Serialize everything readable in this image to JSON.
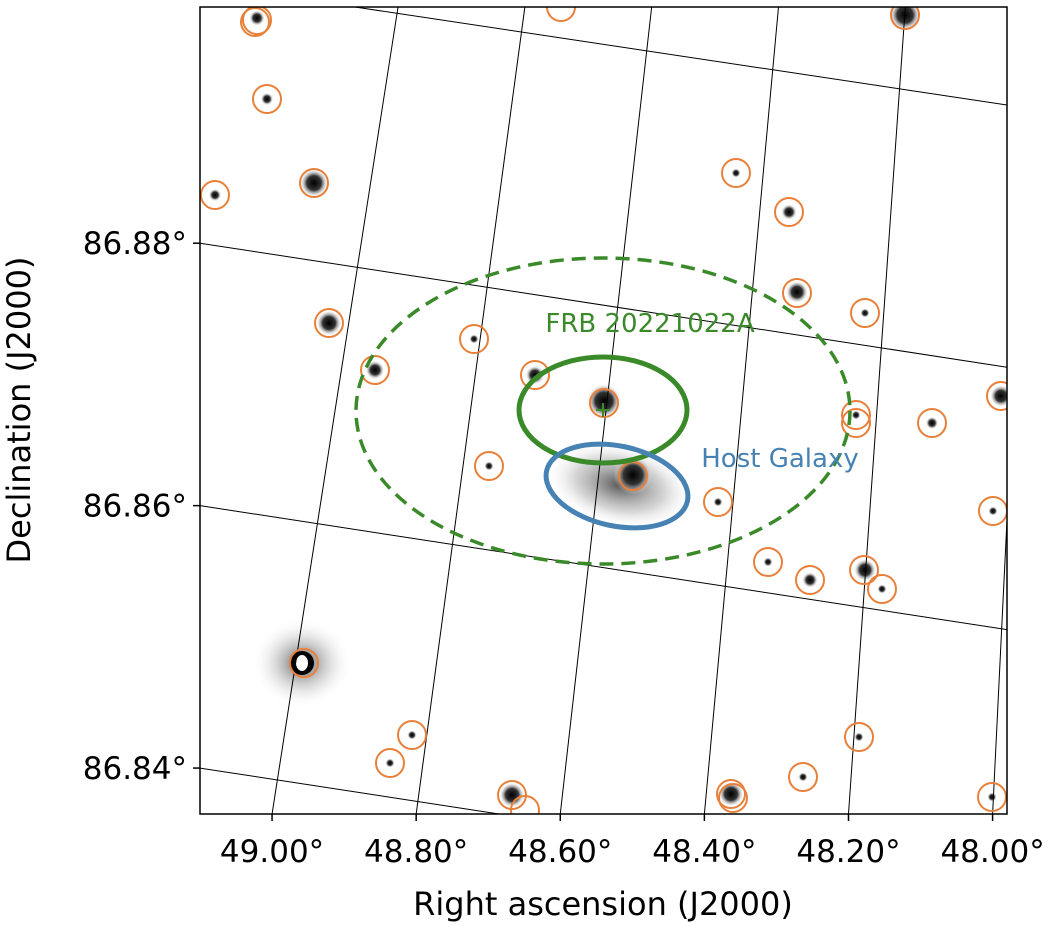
{
  "chart_data": {
    "type": "image",
    "xlabel": "Right ascension (J2000)",
    "ylabel": "Declination (J2000)",
    "xlim": [
      49.1,
      47.98
    ],
    "ylim": [
      86.8365,
      86.898
    ],
    "xticks": [
      {
        "value": 49.0,
        "label": "49.00°"
      },
      {
        "value": 48.8,
        "label": "48.80°"
      },
      {
        "value": 48.6,
        "label": "48.60°"
      },
      {
        "value": 48.4,
        "label": "48.40°"
      },
      {
        "value": 48.2,
        "label": "48.20°"
      },
      {
        "value": 48.0,
        "label": "48.00°"
      }
    ],
    "yticks": [
      {
        "value": 86.84,
        "label": "86.84°"
      },
      {
        "value": 86.86,
        "label": "86.86°"
      },
      {
        "value": 86.88,
        "label": "86.88°"
      }
    ],
    "grid": true,
    "annotations": [
      "FRB 20221022A",
      "Host Galaxy"
    ]
  }
}
